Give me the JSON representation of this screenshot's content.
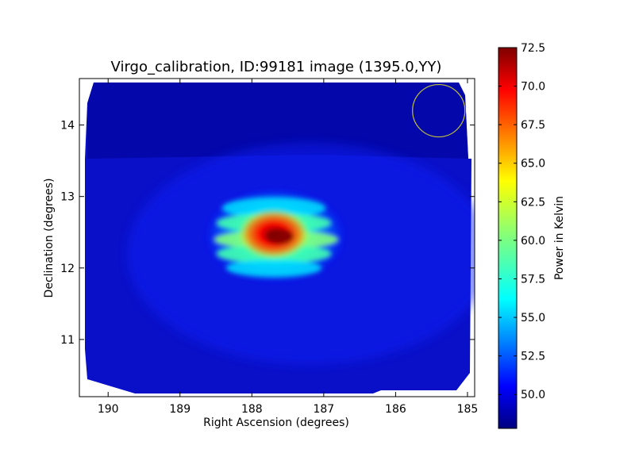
{
  "chart_data": {
    "type": "heatmap",
    "title": "Virgo_calibration, ID:99181 image (1395.0,YY)",
    "xlabel": "Right Ascension (degrees)",
    "ylabel": "Declination (degrees)",
    "xlim": [
      190.4,
      184.9
    ],
    "ylim": [
      10.2,
      14.65
    ],
    "x_ticks": [
      190,
      189,
      188,
      187,
      186,
      185
    ],
    "y_ticks": [
      11,
      12,
      13,
      14
    ],
    "x_tick_labels": [
      "190",
      "189",
      "188",
      "187",
      "186",
      "185"
    ],
    "y_tick_labels": [
      "11",
      "12",
      "13",
      "14"
    ],
    "colorbar": {
      "label": "Power in Kelvin",
      "range": [
        47.8,
        72.5
      ],
      "ticks": [
        50.0,
        52.5,
        55.0,
        57.5,
        60.0,
        62.5,
        65.0,
        67.5,
        70.0,
        72.5
      ],
      "tick_labels": [
        "50.0",
        "52.5",
        "55.0",
        "57.5",
        "60.0",
        "62.5",
        "65.0",
        "67.5",
        "70.0",
        "72.5"
      ],
      "colormap": "jet"
    },
    "source_peak": {
      "ra": 187.7,
      "dec": 12.4,
      "value": 72.5
    },
    "background_value": 49.5,
    "beam_circle": {
      "ra": 185.4,
      "dec": 14.2,
      "color": "#bfbf3f"
    }
  }
}
